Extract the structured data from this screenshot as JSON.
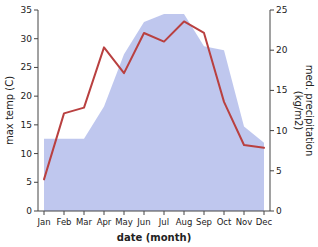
{
  "chart_data": {
    "type": "line",
    "xlabel": "date (month)",
    "ylabel": "max temp (C)",
    "y2label": "med. precipitation\n(kg/m2)",
    "categories": [
      "Jan",
      "Feb",
      "Mar",
      "Apr",
      "May",
      "Jun",
      "Jul",
      "Aug",
      "Sep",
      "Oct",
      "Nov",
      "Dec"
    ],
    "series": [
      {
        "type": "area",
        "axis": "y2",
        "color": "#aab4e8",
        "values": [
          9.0,
          9.0,
          9.0,
          13.0,
          19.5,
          23.5,
          24.5,
          24.5,
          20.5,
          20.0,
          10.5,
          8.5
        ]
      },
      {
        "type": "line",
        "color": "#b94040",
        "values": [
          5.5,
          17.0,
          18.0,
          28.5,
          24.0,
          31.0,
          29.5,
          33.0,
          31.0,
          19.0,
          11.5,
          11.0
        ]
      }
    ],
    "ylim": [
      0,
      35
    ],
    "yticks": [
      0,
      5,
      10,
      15,
      20,
      25,
      30,
      35
    ],
    "y2lim": [
      0,
      25
    ],
    "y2ticks": [
      0,
      5,
      10,
      15,
      20,
      25
    ]
  }
}
